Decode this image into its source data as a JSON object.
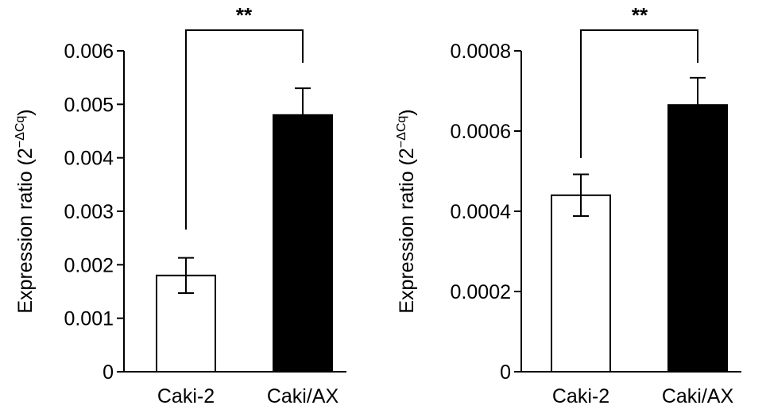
{
  "chart_data": [
    {
      "type": "bar",
      "categories": [
        "Caki-2",
        "Caki/AX"
      ],
      "values": [
        0.0018,
        0.0048
      ],
      "error": [
        0.00033,
        0.0005
      ],
      "bar_colors": [
        "#ffffff",
        "#000000"
      ],
      "ylabel": "Expression ratio (2",
      "ylabel_sup": "−ΔCq",
      "ylabel_close": ")",
      "ylim": [
        0,
        0.006
      ],
      "yticks": [
        0,
        0.001,
        0.002,
        0.003,
        0.004,
        0.005,
        0.006
      ],
      "ytick_labels": [
        "0",
        "0.001",
        "0.002",
        "0.003",
        "0.004",
        "0.005",
        "0.006"
      ],
      "significance": "**"
    },
    {
      "type": "bar",
      "categories": [
        "Caki-2",
        "Caki/AX"
      ],
      "values": [
        0.00044,
        0.000665
      ],
      "error": [
        5.2e-05,
        6.8e-05
      ],
      "bar_colors": [
        "#ffffff",
        "#000000"
      ],
      "ylabel": "Expression ratio (2",
      "ylabel_sup": "−ΔCq",
      "ylabel_close": ")",
      "ylim": [
        0,
        0.0008
      ],
      "yticks": [
        0,
        0.0002,
        0.0004,
        0.0006,
        0.0008
      ],
      "ytick_labels": [
        "0",
        "0.0002",
        "0.0004",
        "0.0006",
        "0.0008"
      ],
      "significance": "**"
    }
  ]
}
